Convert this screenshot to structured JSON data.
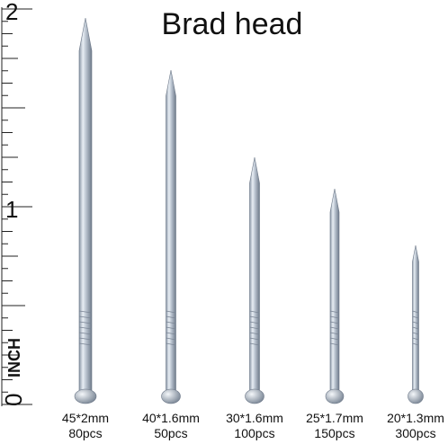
{
  "title": "Brad head",
  "ruler": {
    "unit": "INCH",
    "labels": [
      "0",
      "1",
      "2"
    ]
  },
  "nails": [
    {
      "size": "45*2mm",
      "count": "80pcs"
    },
    {
      "size": "40*1.6mm",
      "count": "50pcs"
    },
    {
      "size": "30*1.6mm",
      "count": "100pcs"
    },
    {
      "size": "25*1.7mm",
      "count": "150pcs"
    },
    {
      "size": "20*1.3mm",
      "count": "300pcs"
    }
  ]
}
